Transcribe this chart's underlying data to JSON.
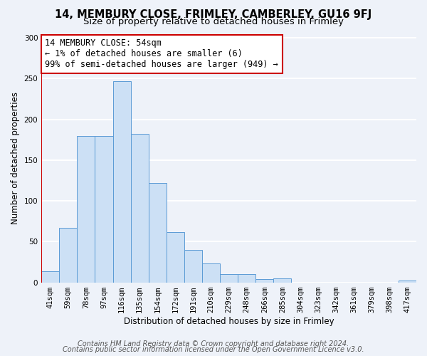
{
  "title_line1": "14, MEMBURY CLOSE, FRIMLEY, CAMBERLEY, GU16 9FJ",
  "title_line2": "Size of property relative to detached houses in Frimley",
  "xlabel": "Distribution of detached houses by size in Frimley",
  "ylabel": "Number of detached properties",
  "bin_labels": [
    "41sqm",
    "59sqm",
    "78sqm",
    "97sqm",
    "116sqm",
    "135sqm",
    "154sqm",
    "172sqm",
    "191sqm",
    "210sqm",
    "229sqm",
    "248sqm",
    "266sqm",
    "285sqm",
    "304sqm",
    "323sqm",
    "342sqm",
    "361sqm",
    "379sqm",
    "398sqm",
    "417sqm"
  ],
  "bar_values": [
    14,
    67,
    180,
    180,
    247,
    182,
    122,
    62,
    40,
    23,
    10,
    10,
    4,
    5,
    0,
    0,
    0,
    0,
    0,
    0,
    2
  ],
  "bar_color": "#cce0f5",
  "bar_edge_color": "#5b9bd5",
  "annotation_box_text": "14 MEMBURY CLOSE: 54sqm\n← 1% of detached houses are smaller (6)\n99% of semi-detached houses are larger (949) →",
  "annotation_box_color": "#ffffff",
  "annotation_box_edge_color": "#cc0000",
  "marker_line_color": "#cc0000",
  "ylim": [
    0,
    305
  ],
  "yticks": [
    0,
    50,
    100,
    150,
    200,
    250,
    300
  ],
  "footer_line1": "Contains HM Land Registry data © Crown copyright and database right 2024.",
  "footer_line2": "Contains public sector information licensed under the Open Government Licence v3.0.",
  "bg_color": "#eef2f9",
  "plot_bg_color": "#eef2f9",
  "grid_color": "#ffffff",
  "title_fontsize": 10.5,
  "subtitle_fontsize": 9.5,
  "axis_label_fontsize": 8.5,
  "tick_fontsize": 7.5,
  "annot_fontsize": 8.5,
  "footer_fontsize": 7
}
